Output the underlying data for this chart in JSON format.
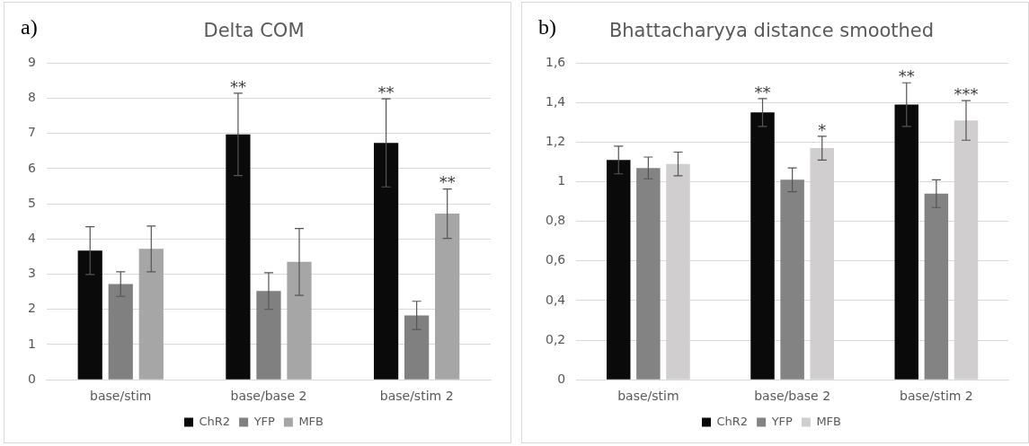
{
  "chart_data": [
    {
      "type": "bar",
      "title": "Delta COM",
      "categories": [
        "base/stim",
        "base/base 2",
        "base/stim 2"
      ],
      "series": [
        {
          "name": "ChR2",
          "color": "#0a0a0a",
          "values": [
            3.67,
            6.97,
            6.73
          ],
          "errors": [
            0.68,
            1.17,
            1.25
          ]
        },
        {
          "name": "YFP",
          "color": "#808080",
          "values": [
            2.72,
            2.52,
            1.83
          ],
          "errors": [
            0.35,
            0.52,
            0.4
          ]
        },
        {
          "name": "MFB",
          "color": "#a6a6a6",
          "values": [
            3.72,
            3.35,
            4.72
          ],
          "errors": [
            0.65,
            0.95,
            0.7
          ]
        }
      ],
      "ylim": [
        0,
        9
      ],
      "yticks": [
        0,
        1,
        2,
        3,
        4,
        5,
        6,
        7,
        8,
        9
      ],
      "grid": "y",
      "legend": "bottom",
      "annotations": [
        "a)",
        "**",
        "**",
        "**"
      ]
    },
    {
      "type": "bar",
      "title": "Bhattacharyya distance smoothed",
      "categories": [
        "base/stim",
        "base/base 2",
        "base/stim 2"
      ],
      "series": [
        {
          "name": "ChR2",
          "color": "#0a0a0a",
          "values": [
            1.11,
            1.35,
            1.39
          ],
          "errors": [
            0.07,
            0.07,
            0.11
          ]
        },
        {
          "name": "YFP",
          "color": "#838383",
          "values": [
            1.07,
            1.01,
            0.94
          ],
          "errors": [
            0.055,
            0.06,
            0.07
          ]
        },
        {
          "name": "MFB",
          "color": "#d0cece",
          "values": [
            1.09,
            1.17,
            1.31
          ],
          "errors": [
            0.06,
            0.06,
            0.1
          ]
        }
      ],
      "ylim": [
        0,
        1.6
      ],
      "yticks": [
        0,
        {
          "value": 0.2,
          "label": "0,2"
        },
        {
          "value": 0.4,
          "label": "0,4"
        },
        {
          "value": 0.6,
          "label": "0,6"
        },
        {
          "value": 0.8,
          "label": "0,8"
        },
        1,
        {
          "value": 1.2,
          "label": "1,2"
        },
        {
          "value": 1.4,
          "label": "1,4"
        },
        {
          "value": 1.6,
          "label": "1,6"
        }
      ],
      "grid": "y",
      "legend": "bottom",
      "annotations": [
        "b)",
        "**",
        "*",
        "**",
        "***"
      ]
    }
  ]
}
